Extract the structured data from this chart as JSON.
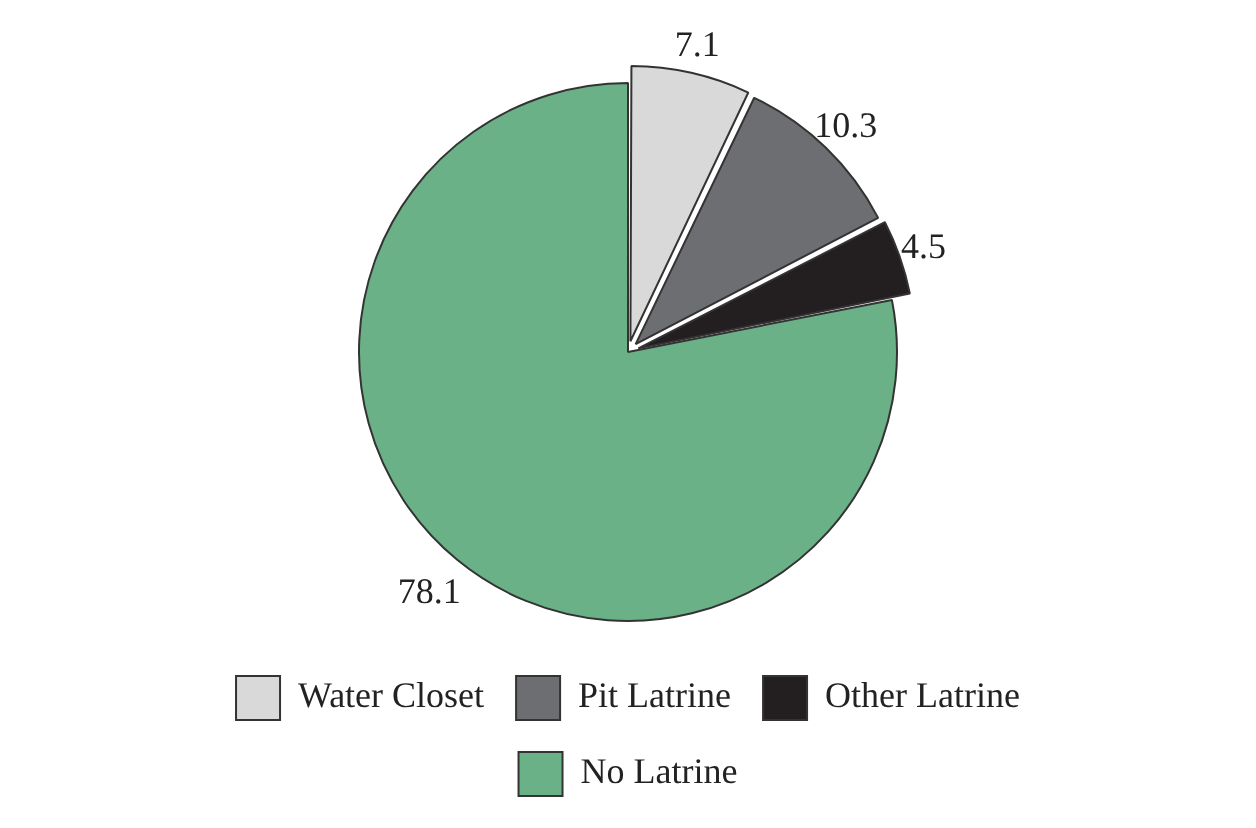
{
  "chart_data": {
    "type": "pie",
    "categories": [
      "Water Closet",
      "Pit Latrine",
      "Other Latrine",
      "No Latrine"
    ],
    "values": [
      7.1,
      10.3,
      4.5,
      78.1
    ],
    "colors": [
      "#d9d9d9",
      "#6d6e71",
      "#231f20",
      "#6ab187"
    ],
    "data_labels": true,
    "legend": "bottom"
  }
}
